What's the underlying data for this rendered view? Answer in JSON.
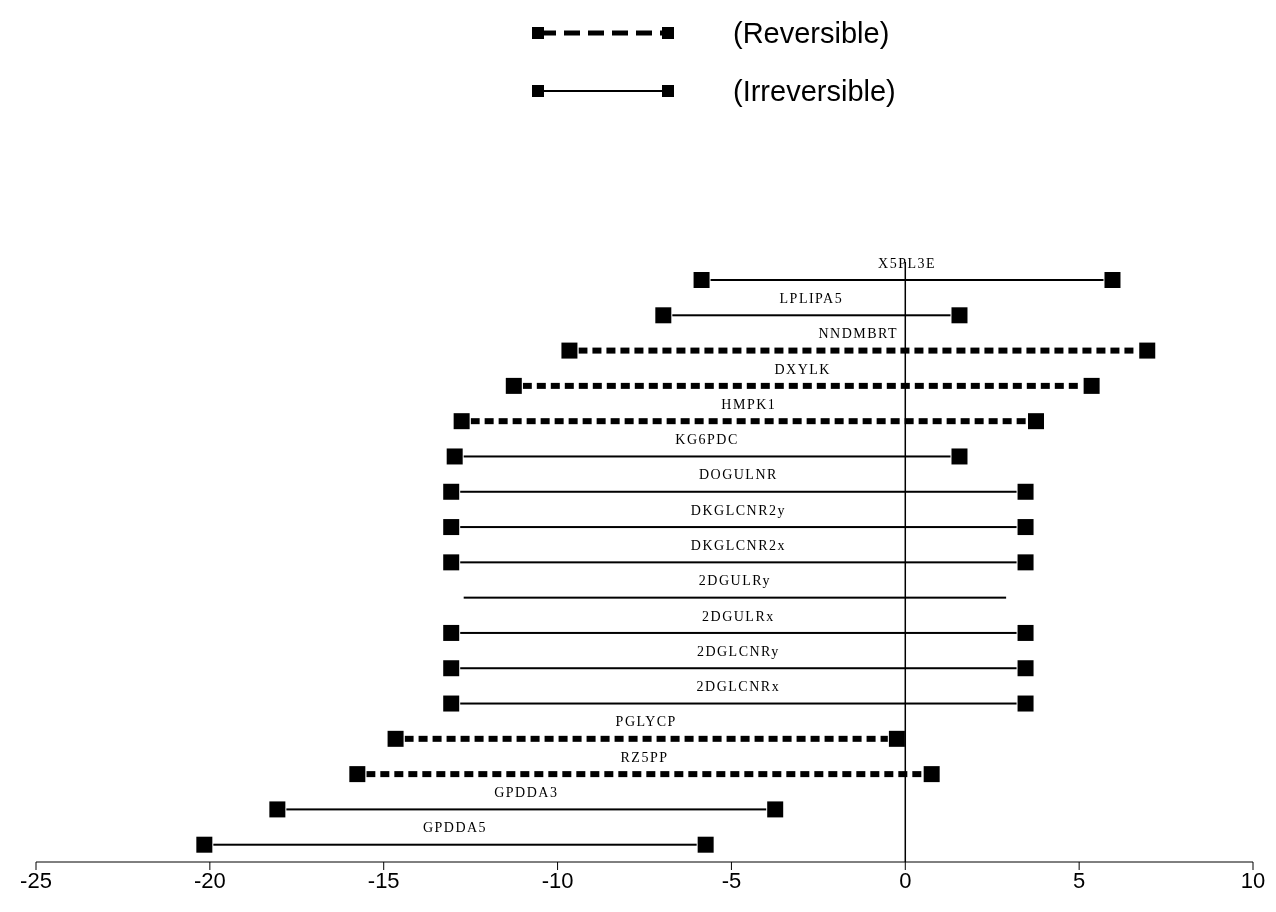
{
  "chart_data": {
    "type": "bar",
    "orientation": "horizontal",
    "legend": "top",
    "marker": "square",
    "categories": [
      "X5PL3E",
      "LPLIPA5",
      "NNDMBRT",
      "DXYLK",
      "HMPK1",
      "KG6PDC",
      "DOGULNR",
      "DKGLCNR2y",
      "DKGLCNR2x",
      "2DGULRy",
      "2DGULRx",
      "2DGLCNRy",
      "2DGLCNRx",
      "PGLYCP",
      "RZ5PP",
      "GPDDA3",
      "GPDDA5"
    ],
    "series": [
      {
        "name": "(Reversible)",
        "color": "#000000",
        "line_style": "dashed",
        "base": [
          null,
          null,
          -9.4,
          -11.0,
          -12.5,
          null,
          null,
          null,
          null,
          null,
          null,
          null,
          null,
          -14.4,
          -15.5,
          null,
          null
        ],
        "values": [
          null,
          null,
          16.1,
          16.1,
          16.0,
          null,
          null,
          null,
          null,
          null,
          null,
          null,
          null,
          13.9,
          16.0,
          null,
          null
        ]
      },
      {
        "name": "(Irreversible)",
        "color": "#000000",
        "line_style": "solid",
        "base": [
          -5.6,
          -6.7,
          null,
          null,
          null,
          -12.7,
          -12.8,
          -12.8,
          -12.8,
          null,
          -12.8,
          -12.8,
          -12.8,
          null,
          null,
          -17.8,
          -19.9
        ],
        "values": [
          11.3,
          8.0,
          null,
          null,
          null,
          14.0,
          16.0,
          16.0,
          16.0,
          null,
          16.0,
          16.0,
          16.0,
          null,
          null,
          13.8,
          13.9
        ]
      },
      {
        "color": "#000000",
        "line_style": "solid",
        "marker": "none",
        "base": [
          null,
          null,
          null,
          null,
          null,
          null,
          null,
          null,
          null,
          -12.7,
          null,
          null,
          null,
          null,
          null,
          null,
          null
        ],
        "values": [
          null,
          null,
          null,
          null,
          null,
          null,
          null,
          null,
          null,
          15.6,
          null,
          null,
          null,
          null,
          null,
          null,
          null
        ]
      }
    ],
    "xlim": [
      -25,
      10
    ],
    "xticks": [
      -25,
      -20,
      -15,
      -10,
      -5,
      0,
      5,
      10
    ],
    "ref_lines": [
      {
        "axis": "x",
        "value": 0,
        "color": "#000000"
      }
    ]
  }
}
